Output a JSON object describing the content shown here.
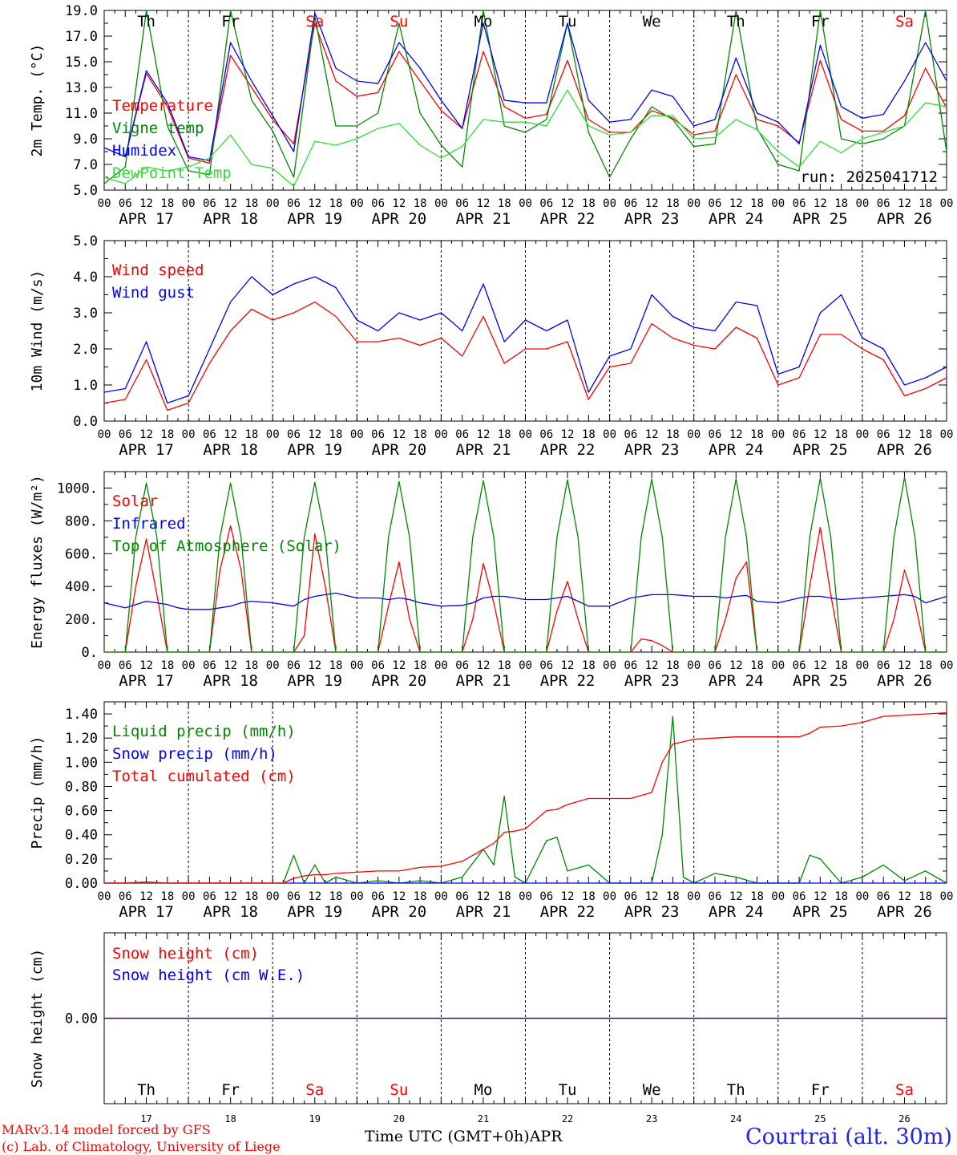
{
  "footer": {
    "model": "MARv3.14 model forced by GFS",
    "lab": "(c) Lab. of Climatology, University of Liege",
    "time_label": "Time UTC (GMT+0h)",
    "month": "APR",
    "station": "Courtrai (alt. 30m)"
  },
  "x_axis": {
    "hour_ticks": [
      "00",
      "06",
      "12",
      "18"
    ],
    "date_labels": [
      "APR 17",
      "APR 18",
      "APR 19",
      "APR 20",
      "APR 21",
      "APR 22",
      "APR 23",
      "APR 24",
      "APR 25",
      "APR 26"
    ],
    "day_numbers": [
      "17",
      "18",
      "19",
      "20",
      "21",
      "22",
      "23",
      "24",
      "25",
      "26"
    ]
  },
  "weekdays": [
    {
      "label": "Th",
      "weekend": false
    },
    {
      "label": "Fr",
      "weekend": false
    },
    {
      "label": "Sa",
      "weekend": true
    },
    {
      "label": "Su",
      "weekend": true
    },
    {
      "label": "Mo",
      "weekend": false
    },
    {
      "label": "Tu",
      "weekend": false
    },
    {
      "label": "We",
      "weekend": false
    },
    {
      "label": "Th",
      "weekend": false
    },
    {
      "label": "Fr",
      "weekend": false
    },
    {
      "label": "Sa",
      "weekend": true
    }
  ],
  "colors": {
    "red": "#ff0000",
    "green": "#008800",
    "blue": "#0000ff",
    "light_green": "#33dd33",
    "weekend": "#ff0000",
    "weekday": "#000000"
  },
  "chart_data": [
    {
      "type": "line",
      "ylabel": "2m Temp. (°C)",
      "ylim": [
        5.0,
        19.0
      ],
      "yticks": [
        "5.0",
        "7.0",
        "9.0",
        "11.0",
        "13.0",
        "15.0",
        "17.0",
        "19.0"
      ],
      "note": "run: 2025041712",
      "x_hours": [
        0,
        6,
        12,
        18,
        24,
        30,
        36,
        42,
        48,
        54,
        60,
        66,
        72,
        78,
        84,
        90,
        96,
        102,
        108,
        114,
        120,
        126,
        132,
        138,
        144,
        150,
        156,
        162,
        168,
        174,
        180,
        186,
        192,
        198,
        204,
        210,
        216,
        222,
        228,
        234,
        240
      ],
      "series": [
        {
          "name": "Temperature",
          "color": "#ff0000",
          "values": [
            8.3,
            7.6,
            14.1,
            11.5,
            7.5,
            7.1,
            15.5,
            13.0,
            10.5,
            8.6,
            18.0,
            13.5,
            12.3,
            12.6,
            15.8,
            13.5,
            11.2,
            9.8,
            15.8,
            11.5,
            10.6,
            10.9,
            15.1,
            10.5,
            9.5,
            9.5,
            11.2,
            10.6,
            9.3,
            9.6,
            14.0,
            10.5,
            10.0,
            8.7,
            15.1,
            10.5,
            9.6,
            9.6,
            10.8,
            14.5,
            11.4
          ]
        },
        {
          "name": "Vigne temp",
          "color": "#008800",
          "values": [
            5.5,
            6.8,
            19.0,
            10.0,
            6.5,
            6.2,
            19.0,
            12.0,
            9.6,
            6.0,
            18.5,
            10.0,
            10.0,
            11.0,
            18.0,
            11.0,
            8.5,
            6.8,
            19.0,
            10.0,
            9.5,
            10.5,
            18.0,
            9.5,
            6.0,
            9.0,
            11.5,
            10.5,
            8.4,
            8.6,
            19.0,
            9.8,
            7.0,
            6.5,
            19.0,
            9.0,
            8.6,
            9.0,
            10.0,
            19.0,
            8.0
          ]
        },
        {
          "name": "Humidex",
          "color": "#0000ff",
          "values": [
            8.3,
            7.6,
            14.3,
            11.8,
            7.6,
            7.3,
            16.5,
            13.5,
            10.8,
            8.0,
            18.8,
            14.5,
            13.5,
            13.3,
            16.5,
            14.5,
            12.0,
            9.8,
            18.0,
            12.0,
            11.8,
            11.8,
            18.0,
            12.0,
            10.3,
            10.5,
            12.8,
            12.3,
            10.0,
            10.5,
            15.3,
            11.0,
            10.3,
            8.6,
            16.3,
            11.5,
            10.6,
            10.9,
            13.5,
            16.5,
            13.5
          ]
        },
        {
          "name": "DewPoint Temp",
          "color": "#33dd33",
          "values": [
            6.0,
            5.5,
            6.8,
            6.5,
            6.8,
            7.5,
            9.3,
            7.0,
            6.7,
            5.3,
            8.8,
            8.5,
            9.0,
            9.8,
            10.2,
            8.5,
            7.5,
            8.4,
            10.5,
            10.3,
            10.3,
            10.0,
            12.8,
            10.0,
            9.3,
            9.5,
            10.8,
            10.8,
            9.0,
            9.1,
            10.5,
            9.7,
            8.0,
            6.8,
            8.8,
            7.9,
            9.0,
            9.5,
            10.0,
            11.8,
            11.5
          ]
        }
      ]
    },
    {
      "type": "line",
      "ylabel": "10m Wind (m/s)",
      "ylim": [
        0.0,
        5.0
      ],
      "yticks": [
        "0.0",
        "1.0",
        "2.0",
        "3.0",
        "4.0",
        "5.0"
      ],
      "x_hours": [
        0,
        6,
        12,
        18,
        24,
        30,
        36,
        42,
        48,
        54,
        60,
        66,
        72,
        78,
        84,
        90,
        96,
        102,
        108,
        114,
        120,
        126,
        132,
        138,
        144,
        150,
        156,
        162,
        168,
        174,
        180,
        186,
        192,
        198,
        204,
        210,
        216,
        222,
        228,
        234,
        240
      ],
      "series": [
        {
          "name": "Wind speed",
          "color": "#ff0000",
          "values": [
            0.5,
            0.6,
            1.7,
            0.3,
            0.5,
            1.6,
            2.5,
            3.1,
            2.8,
            3.0,
            3.3,
            2.9,
            2.2,
            2.2,
            2.3,
            2.1,
            2.3,
            1.8,
            2.9,
            1.6,
            2.0,
            2.0,
            2.2,
            0.6,
            1.5,
            1.6,
            2.7,
            2.3,
            2.1,
            2.0,
            2.6,
            2.3,
            1.0,
            1.2,
            2.4,
            2.4,
            2.0,
            1.7,
            0.7,
            0.9,
            1.2
          ]
        },
        {
          "name": "Wind gust",
          "color": "#0000ff",
          "values": [
            0.8,
            0.9,
            2.2,
            0.5,
            0.7,
            2.0,
            3.3,
            4.0,
            3.5,
            3.8,
            4.0,
            3.7,
            2.8,
            2.5,
            3.0,
            2.8,
            3.0,
            2.5,
            3.8,
            2.2,
            2.8,
            2.5,
            2.8,
            0.8,
            1.8,
            2.0,
            3.5,
            2.9,
            2.6,
            2.5,
            3.3,
            3.2,
            1.3,
            1.5,
            3.0,
            3.5,
            2.3,
            2.0,
            1.0,
            1.2,
            1.5
          ]
        }
      ]
    },
    {
      "type": "line",
      "ylabel": "Energy fluxes (W/m²)",
      "ylim": [
        0,
        1100
      ],
      "yticks": [
        "0.",
        "200.",
        "400.",
        "600.",
        "800.",
        "1000."
      ],
      "x_hours": [
        0,
        6,
        9,
        12,
        15,
        18,
        21,
        24,
        30,
        33,
        36,
        39,
        42,
        48,
        54,
        57,
        60,
        63,
        66,
        72,
        78,
        81,
        84,
        87,
        90,
        96,
        102,
        105,
        108,
        111,
        114,
        120,
        126,
        129,
        132,
        135,
        138,
        144,
        150,
        153,
        156,
        159,
        162,
        168,
        174,
        177,
        180,
        183,
        186,
        192,
        198,
        201,
        204,
        207,
        210,
        216,
        222,
        225,
        228,
        231,
        234,
        240
      ],
      "series": [
        {
          "name": "Solar",
          "color": "#ff0000",
          "values": [
            0,
            0,
            400,
            690,
            350,
            0,
            0,
            0,
            0,
            500,
            770,
            500,
            0,
            0,
            0,
            100,
            720,
            400,
            0,
            0,
            0,
            280,
            550,
            200,
            0,
            0,
            0,
            200,
            540,
            300,
            0,
            0,
            0,
            250,
            430,
            200,
            0,
            0,
            0,
            80,
            70,
            40,
            0,
            0,
            0,
            200,
            450,
            550,
            0,
            0,
            0,
            400,
            760,
            350,
            0,
            0,
            0,
            200,
            500,
            300,
            0,
            0
          ]
        },
        {
          "name": "Infrared",
          "color": "#0000ff",
          "values": [
            300,
            270,
            290,
            310,
            300,
            290,
            270,
            260,
            260,
            270,
            280,
            300,
            310,
            300,
            280,
            320,
            340,
            350,
            360,
            330,
            330,
            320,
            330,
            320,
            300,
            280,
            285,
            300,
            330,
            340,
            340,
            320,
            320,
            330,
            340,
            310,
            280,
            280,
            330,
            340,
            350,
            350,
            350,
            340,
            340,
            330,
            340,
            345,
            310,
            300,
            330,
            340,
            340,
            330,
            320,
            330,
            340,
            345,
            350,
            340,
            300,
            340
          ]
        },
        {
          "name": "Top of Atmosphere (Solar)",
          "color": "#008800",
          "values": [
            0,
            0,
            700,
            1030,
            700,
            0,
            0,
            0,
            0,
            700,
            1030,
            700,
            0,
            0,
            0,
            700,
            1035,
            700,
            0,
            0,
            0,
            700,
            1040,
            700,
            0,
            0,
            0,
            700,
            1045,
            700,
            0,
            0,
            0,
            700,
            1050,
            700,
            0,
            0,
            0,
            700,
            1055,
            700,
            0,
            0,
            0,
            700,
            1055,
            700,
            0,
            0,
            0,
            700,
            1060,
            700,
            0,
            0,
            0,
            700,
            1065,
            700,
            0,
            0
          ]
        }
      ]
    },
    {
      "type": "line",
      "ylabel": "Precip (mm/h)",
      "ylim": [
        0.0,
        1.5
      ],
      "yticks": [
        "0.00",
        "0.20",
        "0.40",
        "0.60",
        "0.80",
        "1.00",
        "1.20",
        "1.40"
      ],
      "x_hours": [
        0,
        6,
        12,
        18,
        24,
        30,
        36,
        42,
        48,
        51,
        54,
        57,
        60,
        63,
        66,
        72,
        78,
        84,
        90,
        96,
        102,
        108,
        111,
        114,
        117,
        120,
        126,
        129,
        132,
        138,
        144,
        150,
        156,
        159,
        162,
        165,
        168,
        174,
        180,
        186,
        192,
        198,
        201,
        204,
        210,
        216,
        222,
        228,
        234,
        240
      ],
      "series": [
        {
          "name": "Liquid precip (mm/h)",
          "color": "#008800",
          "values": [
            0,
            0,
            0.01,
            0,
            0,
            0,
            0,
            0,
            0,
            0,
            0.23,
            0,
            0.15,
            0,
            0.05,
            0,
            0.02,
            0,
            0.02,
            0,
            0.05,
            0.28,
            0.15,
            0.72,
            0.05,
            0,
            0.35,
            0.38,
            0.1,
            0.15,
            0,
            0,
            0,
            0.4,
            1.38,
            0.05,
            0,
            0.08,
            0.05,
            0,
            0,
            0,
            0.23,
            0.2,
            0,
            0.05,
            0.15,
            0.02,
            0.1,
            0
          ]
        },
        {
          "name": "Snow precip (mm/h)",
          "color": "#0000ff",
          "values": [
            0,
            0,
            0,
            0,
            0,
            0,
            0,
            0,
            0,
            0,
            0,
            0,
            0,
            0,
            0,
            0,
            0,
            0,
            0,
            0,
            0,
            0,
            0,
            0,
            0,
            0,
            0,
            0,
            0,
            0,
            0,
            0,
            0,
            0,
            0,
            0,
            0,
            0,
            0,
            0,
            0,
            0,
            0,
            0,
            0,
            0,
            0,
            0,
            0,
            0
          ]
        },
        {
          "name": "Total cumulated (cm)",
          "color": "#ff0000",
          "values": [
            0,
            0,
            0,
            0,
            0,
            0,
            0,
            0,
            0,
            0,
            0.04,
            0.06,
            0.07,
            0.07,
            0.08,
            0.09,
            0.1,
            0.1,
            0.13,
            0.14,
            0.18,
            0.28,
            0.33,
            0.42,
            0.43,
            0.45,
            0.6,
            0.61,
            0.65,
            0.7,
            0.7,
            0.7,
            0.75,
            1.0,
            1.15,
            1.17,
            1.19,
            1.2,
            1.21,
            1.21,
            1.21,
            1.21,
            1.24,
            1.29,
            1.3,
            1.33,
            1.38,
            1.39,
            1.4,
            1.41
          ]
        }
      ]
    },
    {
      "type": "line",
      "ylabel": "Snow height (cm)",
      "yticks": [
        "0.00"
      ],
      "x_hours": [
        0,
        240
      ],
      "series": [
        {
          "name": "Snow height (cm)",
          "color": "#ff0000",
          "values": [
            0,
            0
          ]
        },
        {
          "name": "Snow height (cm W.E.)",
          "color": "#0000ff",
          "values": [
            0,
            0
          ]
        }
      ]
    }
  ]
}
